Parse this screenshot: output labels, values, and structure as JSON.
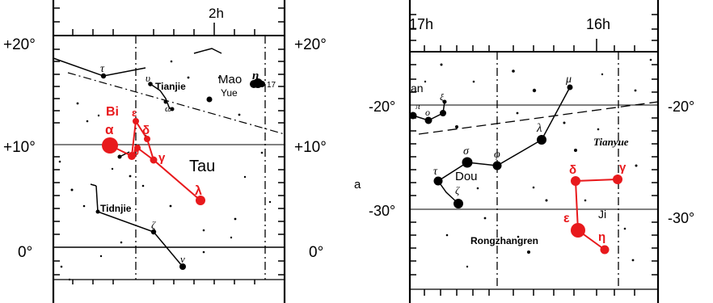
{
  "colors": {
    "ink": "#000000",
    "highlight": "#e8191c"
  },
  "left_map": {
    "ra_label": "2h",
    "dec_labels": {
      "plus20": "+20°",
      "plus10": "+10°",
      "zero": "0°"
    },
    "constellation_names": {
      "tau": "Tau",
      "tianjie_upper": "Tianjie",
      "tianjie_lower": "Tidnjie",
      "mao": "Mao",
      "yue": "Yue"
    },
    "red_labels": {
      "bi": "Bi",
      "alpha": "α",
      "epsilon": "ε",
      "delta": "δ",
      "theta": "θ",
      "gamma": "γ",
      "lambda": "λ"
    },
    "black_labels": {
      "tau": "τ",
      "upsilon": "υ",
      "omega": "ω",
      "eta": "η",
      "seventeen": "17",
      "nu_upper": "ν",
      "nu_lower": "ν"
    }
  },
  "panel_letter": "a",
  "right_map": {
    "ra_labels": {
      "h17": "17h",
      "h16": "16h"
    },
    "dec_labels": {
      "minus20": "-20°",
      "minus30": "-30°"
    },
    "constellation_names": {
      "an": "an",
      "tianyue": "Tianyue",
      "dou": "Dou",
      "ji": "Ji",
      "rongzhangren": "Rongzhangren"
    },
    "red_labels": {
      "delta": "δ",
      "gamma": "γ",
      "epsilon": "ε",
      "eta": "η"
    },
    "black_labels": {
      "mu": "μ",
      "lambda": "λ",
      "phi": "φ",
      "sigma": "σ",
      "tau": "τ",
      "zeta": "ζ",
      "omicron": "o",
      "pi": "π",
      "xi": "ξ"
    }
  }
}
